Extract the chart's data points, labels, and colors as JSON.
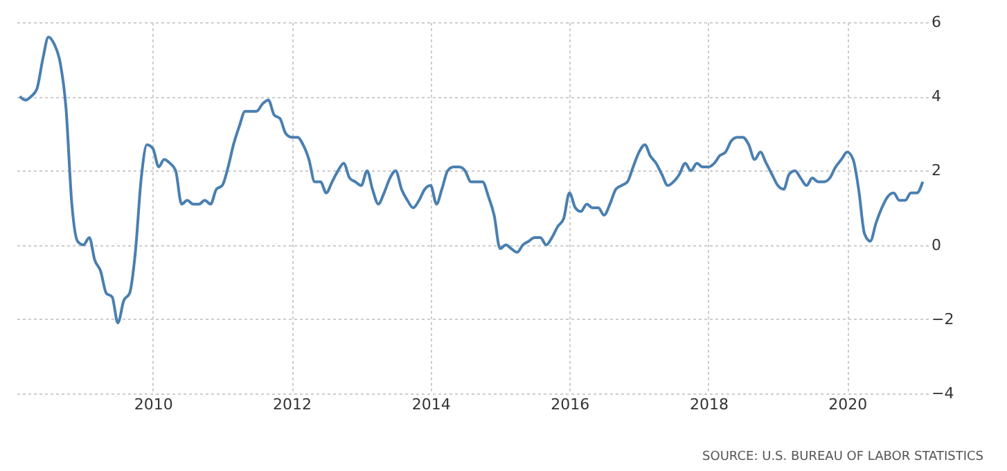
{
  "chart_data": {
    "type": "line",
    "xlim": [
      "2008-01",
      "2021-03"
    ],
    "xticks": [
      "2010",
      "2012",
      "2014",
      "2016",
      "2018",
      "2020"
    ],
    "ylim": [
      -4,
      6
    ],
    "yticks": [
      -4,
      -2,
      0,
      2,
      4,
      6
    ],
    "grid": true,
    "line_style": "solid",
    "marker": "none",
    "x": [
      "2008-02",
      "2008-03",
      "2008-04",
      "2008-05",
      "2008-06",
      "2008-07",
      "2008-08",
      "2008-09",
      "2008-10",
      "2008-11",
      "2008-12",
      "2009-01",
      "2009-02",
      "2009-03",
      "2009-04",
      "2009-05",
      "2009-06",
      "2009-07",
      "2009-08",
      "2009-09",
      "2009-10",
      "2009-11",
      "2009-12",
      "2010-01",
      "2010-02",
      "2010-03",
      "2010-04",
      "2010-05",
      "2010-06",
      "2010-07",
      "2010-08",
      "2010-09",
      "2010-10",
      "2010-11",
      "2010-12",
      "2011-01",
      "2011-02",
      "2011-03",
      "2011-04",
      "2011-05",
      "2011-06",
      "2011-07",
      "2011-08",
      "2011-09",
      "2011-10",
      "2011-11",
      "2011-12",
      "2012-01",
      "2012-02",
      "2012-03",
      "2012-04",
      "2012-05",
      "2012-06",
      "2012-07",
      "2012-08",
      "2012-09",
      "2012-10",
      "2012-11",
      "2012-12",
      "2013-01",
      "2013-02",
      "2013-03",
      "2013-04",
      "2013-05",
      "2013-06",
      "2013-07",
      "2013-08",
      "2013-09",
      "2013-10",
      "2013-11",
      "2013-12",
      "2014-01",
      "2014-02",
      "2014-03",
      "2014-04",
      "2014-05",
      "2014-06",
      "2014-07",
      "2014-08",
      "2014-09",
      "2014-10",
      "2014-11",
      "2014-12",
      "2015-01",
      "2015-02",
      "2015-03",
      "2015-04",
      "2015-05",
      "2015-06",
      "2015-07",
      "2015-08",
      "2015-09",
      "2015-10",
      "2015-11",
      "2015-12",
      "2016-01",
      "2016-02",
      "2016-03",
      "2016-04",
      "2016-05",
      "2016-06",
      "2016-07",
      "2016-08",
      "2016-09",
      "2016-10",
      "2016-11",
      "2016-12",
      "2017-01",
      "2017-02",
      "2017-03",
      "2017-04",
      "2017-05",
      "2017-06",
      "2017-07",
      "2017-08",
      "2017-09",
      "2017-10",
      "2017-11",
      "2017-12",
      "2018-01",
      "2018-02",
      "2018-03",
      "2018-04",
      "2018-05",
      "2018-06",
      "2018-07",
      "2018-08",
      "2018-09",
      "2018-10",
      "2018-11",
      "2018-12",
      "2019-01",
      "2019-02",
      "2019-03",
      "2019-04",
      "2019-05",
      "2019-06",
      "2019-07",
      "2019-08",
      "2019-09",
      "2019-10",
      "2019-11",
      "2019-12",
      "2020-01",
      "2020-02",
      "2020-03",
      "2020-04",
      "2020-05",
      "2020-06",
      "2020-07",
      "2020-08",
      "2020-09",
      "2020-10",
      "2020-11",
      "2020-12",
      "2021-01",
      "2021-02"
    ],
    "series": [
      {
        "color": "#4a7fb0",
        "values": [
          4.0,
          3.9,
          4.0,
          4.2,
          5.0,
          5.6,
          5.4,
          4.9,
          3.7,
          1.1,
          0.1,
          0.0,
          0.2,
          -0.4,
          -0.7,
          -1.3,
          -1.4,
          -2.1,
          -1.5,
          -1.3,
          -0.2,
          1.8,
          2.7,
          2.6,
          2.1,
          2.3,
          2.2,
          2.0,
          1.1,
          1.2,
          1.1,
          1.1,
          1.2,
          1.1,
          1.5,
          1.6,
          2.1,
          2.7,
          3.2,
          3.6,
          3.6,
          3.6,
          3.8,
          3.9,
          3.5,
          3.4,
          3.0,
          2.9,
          2.9,
          2.7,
          2.3,
          1.7,
          1.7,
          1.4,
          1.7,
          2.0,
          2.2,
          1.8,
          1.7,
          1.6,
          2.0,
          1.5,
          1.1,
          1.4,
          1.8,
          2.0,
          1.5,
          1.2,
          1.0,
          1.2,
          1.5,
          1.6,
          1.1,
          1.5,
          2.0,
          2.1,
          2.1,
          2.0,
          1.7,
          1.7,
          1.7,
          1.3,
          0.8,
          -0.1,
          0.0,
          -0.1,
          -0.2,
          0.0,
          0.1,
          0.2,
          0.2,
          0.0,
          0.2,
          0.5,
          0.7,
          1.4,
          1.0,
          0.9,
          1.1,
          1.0,
          1.0,
          0.8,
          1.1,
          1.5,
          1.6,
          1.7,
          2.1,
          2.5,
          2.7,
          2.4,
          2.2,
          1.9,
          1.6,
          1.7,
          1.9,
          2.2,
          2.0,
          2.2,
          2.1,
          2.1,
          2.2,
          2.4,
          2.5,
          2.8,
          2.9,
          2.9,
          2.7,
          2.3,
          2.5,
          2.2,
          1.9,
          1.6,
          1.5,
          1.9,
          2.0,
          1.8,
          1.6,
          1.8,
          1.7,
          1.7,
          1.8,
          2.1,
          2.3,
          2.5,
          2.3,
          1.5,
          0.3,
          0.1,
          0.6,
          1.0,
          1.3,
          1.4,
          1.2,
          1.2,
          1.4,
          1.4,
          1.7
        ]
      }
    ],
    "annotations": [
      "SOURCE: U.S. BUREAU OF LABOR STATISTICS"
    ]
  }
}
